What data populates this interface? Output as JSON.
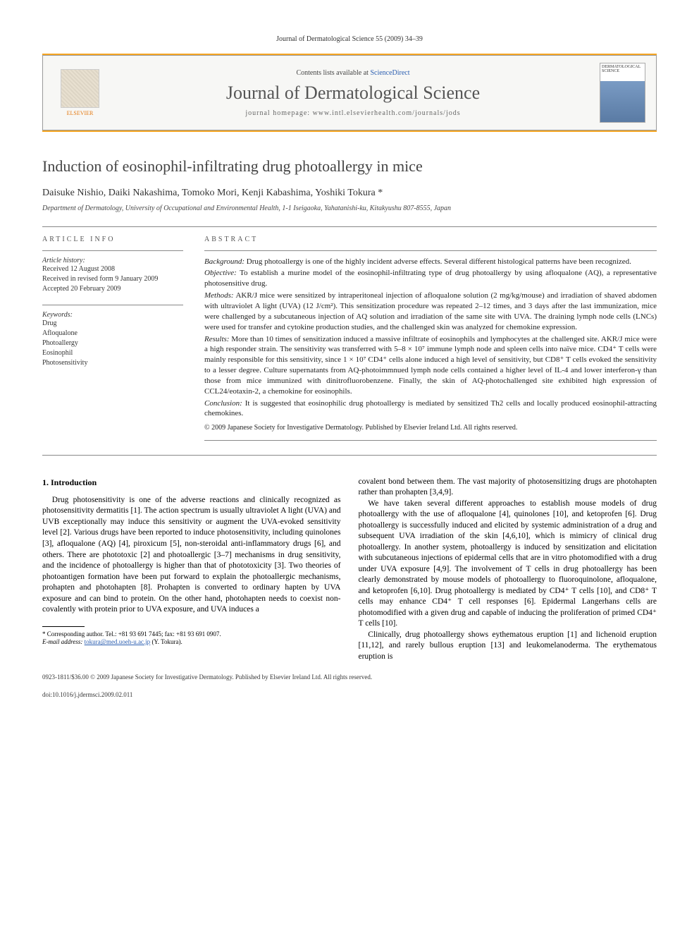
{
  "running_header": "Journal of Dermatological Science 55 (2009) 34–39",
  "masthead": {
    "publisher": "ELSEVIER",
    "contents_prefix": "Contents lists available at ",
    "contents_link": "ScienceDirect",
    "journal_name": "Journal of Dermatological Science",
    "homepage_prefix": "journal homepage: ",
    "homepage_url": "www.intl.elsevierhealth.com/journals/jods",
    "cover_label": "DERMATOLOGICAL SCIENCE"
  },
  "article": {
    "title": "Induction of eosinophil-infiltrating drug photoallergy in mice",
    "authors": "Daisuke Nishio, Daiki Nakashima, Tomoko Mori, Kenji Kabashima, Yoshiki Tokura",
    "corr_marker": "*",
    "affiliation": "Department of Dermatology, University of Occupational and Environmental Health, 1-1 Iseigaoka, Yahatanishi-ku, Kitakyushu 807-8555, Japan"
  },
  "article_info": {
    "heading": "ARTICLE INFO",
    "history_label": "Article history:",
    "received": "Received 12 August 2008",
    "revised": "Received in revised form 9 January 2009",
    "accepted": "Accepted 20 February 2009",
    "keywords_label": "Keywords:",
    "keywords": [
      "Drug",
      "Afloqualone",
      "Photoallergy",
      "Eosinophil",
      "Photosensitivity"
    ]
  },
  "abstract": {
    "heading": "ABSTRACT",
    "background_label": "Background:",
    "background": "Drug photoallergy is one of the highly incident adverse effects. Several different histological patterns have been recognized.",
    "objective_label": "Objective:",
    "objective": "To establish a murine model of the eosinophil-infiltrating type of drug photoallergy by using afloqualone (AQ), a representative photosensitive drug.",
    "methods_label": "Methods:",
    "methods": "AKR/J mice were sensitized by intraperitoneal injection of afloqualone solution (2 mg/kg/mouse) and irradiation of shaved abdomen with ultraviolet A light (UVA) (12 J/cm²). This sensitization procedure was repeated 2–12 times, and 3 days after the last immunization, mice were challenged by a subcutaneous injection of AQ solution and irradiation of the same site with UVA. The draining lymph node cells (LNCs) were used for transfer and cytokine production studies, and the challenged skin was analyzed for chemokine expression.",
    "results_label": "Results:",
    "results": "More than 10 times of sensitization induced a massive infiltrate of eosinophils and lymphocytes at the challenged site. AKR/J mice were a high responder strain. The sensitivity was transferred with 5–8 × 10⁷ immune lymph node and spleen cells into naïve mice. CD4⁺ T cells were mainly responsible for this sensitivity, since 1 × 10⁷ CD4⁺ cells alone induced a high level of sensitivity, but CD8⁺ T cells evoked the sensitivity to a lesser degree. Culture supernatants from AQ-photoimmnued lymph node cells contained a higher level of IL-4 and lower interferon-γ than those from mice immunized with dinitrofluorobenzene. Finally, the skin of AQ-photochallenged site exhibited high expression of CCL24/eotaxin-2, a chemokine for eosinophils.",
    "conclusion_label": "Conclusion:",
    "conclusion": "It is suggested that eosinophilic drug photoallergy is mediated by sensitized Th2 cells and locally produced eosinophil-attracting chemokines.",
    "copyright": "© 2009 Japanese Society for Investigative Dermatology. Published by Elsevier Ireland Ltd. All rights reserved."
  },
  "body": {
    "section_number": "1.",
    "section_title": "Introduction",
    "col1_p1": "Drug photosensitivity is one of the adverse reactions and clinically recognized as photosensitivity dermatitis [1]. The action spectrum is usually ultraviolet A light (UVA) and UVB exceptionally may induce this sensitivity or augment the UVA-evoked sensitivity level [2]. Various drugs have been reported to induce photosensitivity, including quinolones [3], afloqualone (AQ) [4], piroxicum [5], non-steroidal anti-inflammatory drugs [6], and others. There are phototoxic [2] and photoallergic [3–7] mechanisms in drug sensitivity, and the incidence of photoallergy is higher than that of phototoxicity [3]. Two theories of photoantigen formation have been put forward to explain the photoallergic mechanisms, prohapten and photohapten [8]. Prohapten is converted to ordinary hapten by UVA exposure and can bind to protein. On the other hand, photohapten needs to coexist non-covalently with protein prior to UVA exposure, and UVA induces a",
    "col2_p1": "covalent bond between them. The vast majority of photosensitizing drugs are photohapten rather than prohapten [3,4,9].",
    "col2_p2": "We have taken several different approaches to establish mouse models of drug photoallergy with the use of afloqualone [4], quinolones [10], and ketoprofen [6]. Drug photoallergy is successfully induced and elicited by systemic administration of a drug and subsequent UVA irradiation of the skin [4,6,10], which is mimicry of clinical drug photoallergy. In another system, photoallergy is induced by sensitization and elicitation with subcutaneous injections of epidermal cells that are in vitro photomodified with a drug under UVA exposure [4,9]. The involvement of T cells in drug photoallergy has been clearly demonstrated by mouse models of photoallergy to fluoroquinolone, afloqualone, and ketoprofen [6,10]. Drug photoallergy is mediated by CD4⁺ T cells [10], and CD8⁺ T cells may enhance CD4⁺ T cell responses [6]. Epidermal Langerhans cells are photomodified with a given drug and capable of inducing the proliferation of primed CD4⁺ T cells [10].",
    "col2_p3": "Clinically, drug photoallergy shows eythematous eruption [1] and lichenoid eruption [11,12], and rarely bullous eruption [13] and leukomelanoderma. The erythematous eruption is"
  },
  "footnote": {
    "corr_label": "* Corresponding author.",
    "tel": "Tel.: +81 93 691 7445; fax: +81 93 691 0907.",
    "email_label": "E-mail address:",
    "email": "tokura@med.uoeh-u.ac.jp",
    "email_name": "(Y. Tokura)."
  },
  "footer": {
    "line1": "0923-1811/$36.00 © 2009 Japanese Society for Investigative Dermatology. Published by Elsevier Ireland Ltd. All rights reserved.",
    "line2": "doi:10.1016/j.jdermsci.2009.02.011"
  },
  "colors": {
    "orange": "#f5a623",
    "link": "#2a5db0",
    "heading_gray": "#555555"
  }
}
